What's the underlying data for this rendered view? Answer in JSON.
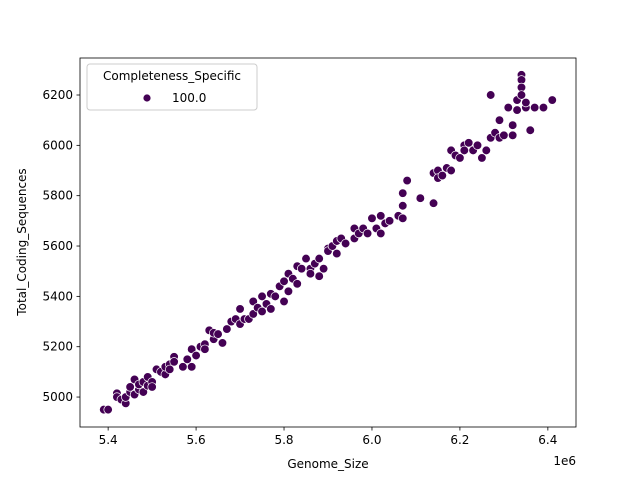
{
  "chart_data": {
    "type": "scatter",
    "xlabel": "Genome_Size",
    "ylabel": "Total_Coding_Sequences",
    "x_offset_label": "1e6",
    "xlim": [
      5.336,
      6.464
    ],
    "ylim": [
      4881,
      6347
    ],
    "x_ticks": [
      5.4,
      5.6,
      5.8,
      6.0,
      6.2,
      6.4
    ],
    "x_tick_labels": [
      "5.4",
      "5.6",
      "5.8",
      "6.0",
      "6.2",
      "6.4"
    ],
    "y_ticks": [
      5000,
      5200,
      5400,
      5600,
      5800,
      6000,
      6200
    ],
    "y_tick_labels": [
      "5000",
      "5200",
      "5400",
      "5600",
      "5800",
      "6000",
      "6200"
    ],
    "grid": false,
    "legend": {
      "title": "Completeness_Specific",
      "placement": "top-left",
      "entries": [
        {
          "label": "100.0",
          "color": "#440154"
        }
      ]
    },
    "series": [
      {
        "name": "100.0",
        "color": "#440154",
        "points": [
          [
            5.39,
            4950
          ],
          [
            5.4,
            4950
          ],
          [
            5.42,
            5015
          ],
          [
            5.42,
            5000
          ],
          [
            5.43,
            4990
          ],
          [
            5.44,
            4975
          ],
          [
            5.44,
            5000
          ],
          [
            5.45,
            5020
          ],
          [
            5.45,
            5040
          ],
          [
            5.46,
            5010
          ],
          [
            5.46,
            5070
          ],
          [
            5.47,
            5030
          ],
          [
            5.47,
            5050
          ],
          [
            5.48,
            5020
          ],
          [
            5.48,
            5060
          ],
          [
            5.49,
            5080
          ],
          [
            5.49,
            5045
          ],
          [
            5.5,
            5060
          ],
          [
            5.5,
            5040
          ],
          [
            5.51,
            5110
          ],
          [
            5.52,
            5100
          ],
          [
            5.53,
            5090
          ],
          [
            5.53,
            5120
          ],
          [
            5.54,
            5130
          ],
          [
            5.54,
            5110
          ],
          [
            5.55,
            5160
          ],
          [
            5.55,
            5140
          ],
          [
            5.57,
            5120
          ],
          [
            5.58,
            5150
          ],
          [
            5.59,
            5190
          ],
          [
            5.59,
            5120
          ],
          [
            5.6,
            5165
          ],
          [
            5.61,
            5200
          ],
          [
            5.62,
            5210
          ],
          [
            5.62,
            5190
          ],
          [
            5.63,
            5265
          ],
          [
            5.64,
            5230
          ],
          [
            5.64,
            5255
          ],
          [
            5.65,
            5250
          ],
          [
            5.66,
            5215
          ],
          [
            5.67,
            5270
          ],
          [
            5.68,
            5300
          ],
          [
            5.69,
            5310
          ],
          [
            5.7,
            5350
          ],
          [
            5.7,
            5290
          ],
          [
            5.71,
            5310
          ],
          [
            5.72,
            5310
          ],
          [
            5.73,
            5330
          ],
          [
            5.73,
            5380
          ],
          [
            5.74,
            5355
          ],
          [
            5.75,
            5400
          ],
          [
            5.75,
            5340
          ],
          [
            5.76,
            5370
          ],
          [
            5.77,
            5410
          ],
          [
            5.77,
            5350
          ],
          [
            5.78,
            5400
          ],
          [
            5.79,
            5440
          ],
          [
            5.8,
            5380
          ],
          [
            5.8,
            5460
          ],
          [
            5.81,
            5490
          ],
          [
            5.81,
            5420
          ],
          [
            5.82,
            5470
          ],
          [
            5.83,
            5520
          ],
          [
            5.83,
            5450
          ],
          [
            5.84,
            5510
          ],
          [
            5.85,
            5550
          ],
          [
            5.86,
            5510
          ],
          [
            5.86,
            5490
          ],
          [
            5.87,
            5530
          ],
          [
            5.88,
            5480
          ],
          [
            5.88,
            5550
          ],
          [
            5.89,
            5510
          ],
          [
            5.9,
            5590
          ],
          [
            5.9,
            5580
          ],
          [
            5.91,
            5600
          ],
          [
            5.92,
            5620
          ],
          [
            5.92,
            5570
          ],
          [
            5.93,
            5630
          ],
          [
            5.94,
            5610
          ],
          [
            5.96,
            5670
          ],
          [
            5.96,
            5630
          ],
          [
            5.97,
            5650
          ],
          [
            5.98,
            5670
          ],
          [
            5.99,
            5650
          ],
          [
            6.0,
            5710
          ],
          [
            6.01,
            5670
          ],
          [
            6.02,
            5650
          ],
          [
            6.02,
            5720
          ],
          [
            6.03,
            5690
          ],
          [
            6.04,
            5700
          ],
          [
            6.06,
            5720
          ],
          [
            6.07,
            5760
          ],
          [
            6.07,
            5810
          ],
          [
            6.07,
            5710
          ],
          [
            6.08,
            5860
          ],
          [
            6.11,
            5790
          ],
          [
            6.14,
            5890
          ],
          [
            6.14,
            5770
          ],
          [
            6.15,
            5900
          ],
          [
            6.15,
            5870
          ],
          [
            6.16,
            5880
          ],
          [
            6.17,
            5910
          ],
          [
            6.18,
            5980
          ],
          [
            6.18,
            5900
          ],
          [
            6.19,
            5960
          ],
          [
            6.2,
            5950
          ],
          [
            6.21,
            6000
          ],
          [
            6.21,
            5980
          ],
          [
            6.22,
            6010
          ],
          [
            6.23,
            5980
          ],
          [
            6.24,
            6000
          ],
          [
            6.25,
            5950
          ],
          [
            6.26,
            5980
          ],
          [
            6.27,
            6200
          ],
          [
            6.27,
            6030
          ],
          [
            6.28,
            6050
          ],
          [
            6.29,
            6100
          ],
          [
            6.29,
            6030
          ],
          [
            6.3,
            6040
          ],
          [
            6.31,
            6150
          ],
          [
            6.32,
            6080
          ],
          [
            6.32,
            6040
          ],
          [
            6.33,
            6180
          ],
          [
            6.33,
            6140
          ],
          [
            6.34,
            6280
          ],
          [
            6.34,
            6260
          ],
          [
            6.34,
            6230
          ],
          [
            6.34,
            6200
          ],
          [
            6.35,
            6150
          ],
          [
            6.35,
            6170
          ],
          [
            6.36,
            6060
          ],
          [
            6.37,
            6150
          ],
          [
            6.39,
            6150
          ],
          [
            6.41,
            6180
          ]
        ]
      }
    ]
  }
}
